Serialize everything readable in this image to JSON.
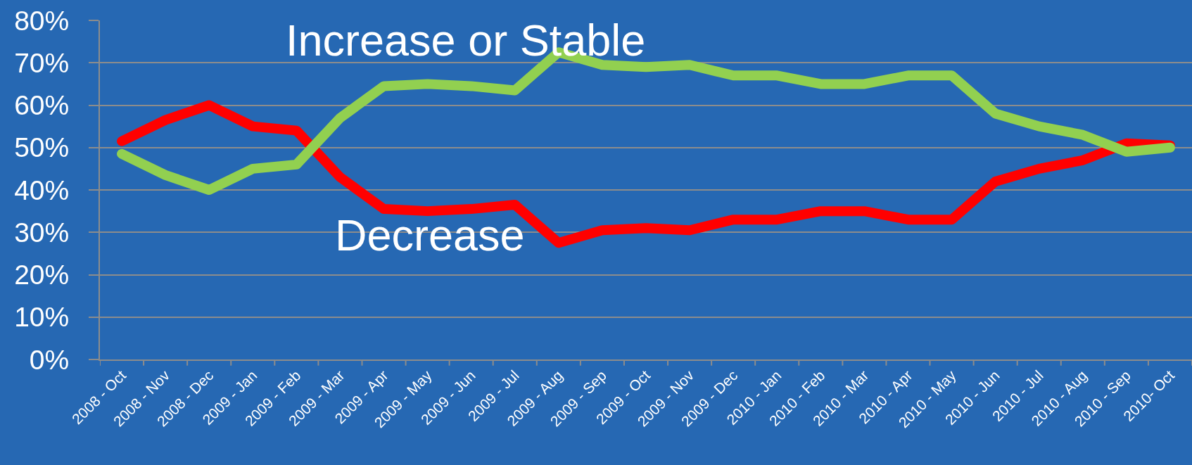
{
  "chart_data": {
    "type": "line",
    "categories": [
      "2008 - Oct",
      "2008 - Nov",
      "2008 - Dec",
      "2009 - Jan",
      "2009 - Feb",
      "2009 - Mar",
      "2009 - Apr",
      "2009 - May",
      "2009 - Jun",
      "2009 - Jul",
      "2009 - Aug",
      "2009 - Sep",
      "2009 - Oct",
      "2009 - Nov",
      "2009 - Dec",
      "2010 - Jan",
      "2010 - Feb",
      "2010 - Mar",
      "2010 - Apr",
      "2010 - May",
      "2010 - Jun",
      "2010 - Jul",
      "2010 - Aug",
      "2010 - Sep",
      "2010- Oct"
    ],
    "series": [
      {
        "name": "Decrease",
        "color": "#ff0000",
        "values": [
          51.5,
          56.5,
          60,
          55,
          54,
          43,
          35.5,
          35,
          35.5,
          36.5,
          27.5,
          30.5,
          31,
          30.5,
          33,
          33,
          35,
          35,
          33,
          33,
          42,
          45,
          47,
          51,
          50.5
        ]
      },
      {
        "name": "Increase or Stable",
        "color": "#92d050",
        "values": [
          48.5,
          43.5,
          40,
          45,
          46,
          57,
          64.5,
          65,
          64.5,
          63.5,
          72.5,
          69.5,
          69,
          69.5,
          67,
          67,
          65,
          65,
          67,
          67,
          58,
          55,
          53,
          49,
          50
        ]
      }
    ],
    "ylim": [
      0,
      80
    ],
    "yticks": [
      {
        "value": 0,
        "label": "0%"
      },
      {
        "value": 10,
        "label": "10%"
      },
      {
        "value": 20,
        "label": "20%"
      },
      {
        "value": 30,
        "label": "30%"
      },
      {
        "value": 40,
        "label": "40%"
      },
      {
        "value": 50,
        "label": "50%"
      },
      {
        "value": 60,
        "label": "60%"
      },
      {
        "value": 70,
        "label": "70%"
      },
      {
        "value": 80,
        "label": "80%"
      }
    ],
    "grid": "y",
    "legend": false,
    "marker": "none",
    "line_style": "solid"
  }
}
